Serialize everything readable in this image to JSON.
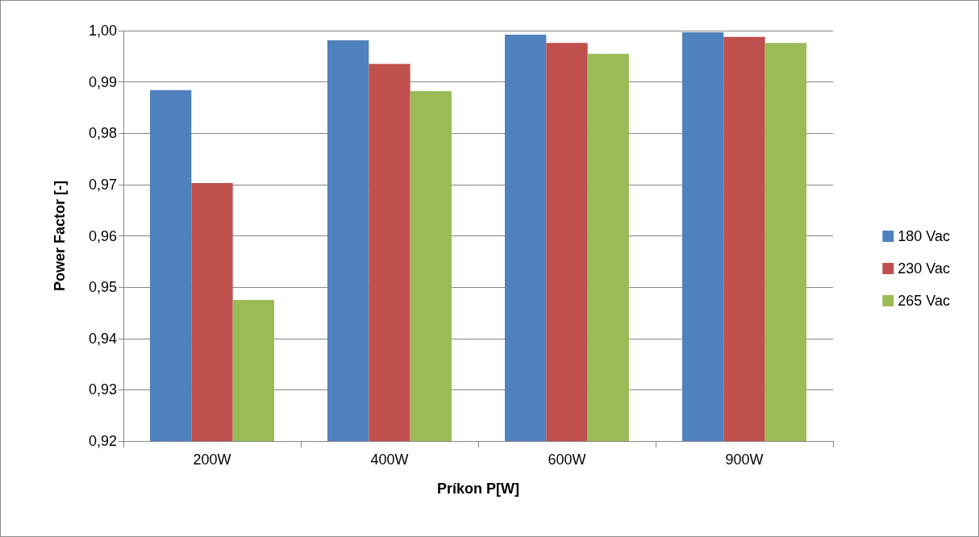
{
  "chart_data": {
    "type": "bar",
    "xlabel": "Príkon P[W]",
    "ylabel": "Power Factor [-]",
    "categories": [
      "200W",
      "400W",
      "600W",
      "900W"
    ],
    "series": [
      {
        "name": "180 Vac",
        "color": "#4f81bd",
        "values": [
          0.9884,
          0.9981,
          0.9992,
          0.9997
        ]
      },
      {
        "name": "230 Vac",
        "color": "#c0504d",
        "values": [
          0.9703,
          0.9935,
          0.9976,
          0.9988
        ]
      },
      {
        "name": "265 Vac",
        "color": "#9bbb59",
        "values": [
          0.9475,
          0.9882,
          0.9955,
          0.9976
        ]
      }
    ],
    "ylim": [
      0.92,
      1.0
    ],
    "yticks": [
      {
        "value": 0.92,
        "label": "0,92"
      },
      {
        "value": 0.93,
        "label": "0,93"
      },
      {
        "value": 0.94,
        "label": "0,94"
      },
      {
        "value": 0.95,
        "label": "0,95"
      },
      {
        "value": 0.96,
        "label": "0,96"
      },
      {
        "value": 0.97,
        "label": "0,97"
      },
      {
        "value": 0.98,
        "label": "0,98"
      },
      {
        "value": 0.99,
        "label": "0,99"
      },
      {
        "value": 1.0,
        "label": "1,00"
      }
    ],
    "grid": "y",
    "legend": "right"
  }
}
